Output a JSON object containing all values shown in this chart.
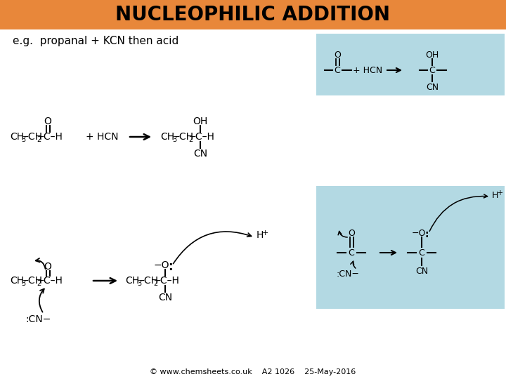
{
  "title": "NUCLEOPHILIC ADDITION",
  "title_bg": "#E8873A",
  "eg_text": "e.g.  propanal + KCN then acid",
  "footer": "© www.chemsheets.co.uk    A2 1026    25-May-2016",
  "box1_color": "#B3D9E3",
  "box2_color": "#B3D9E3",
  "bg_color": "white"
}
